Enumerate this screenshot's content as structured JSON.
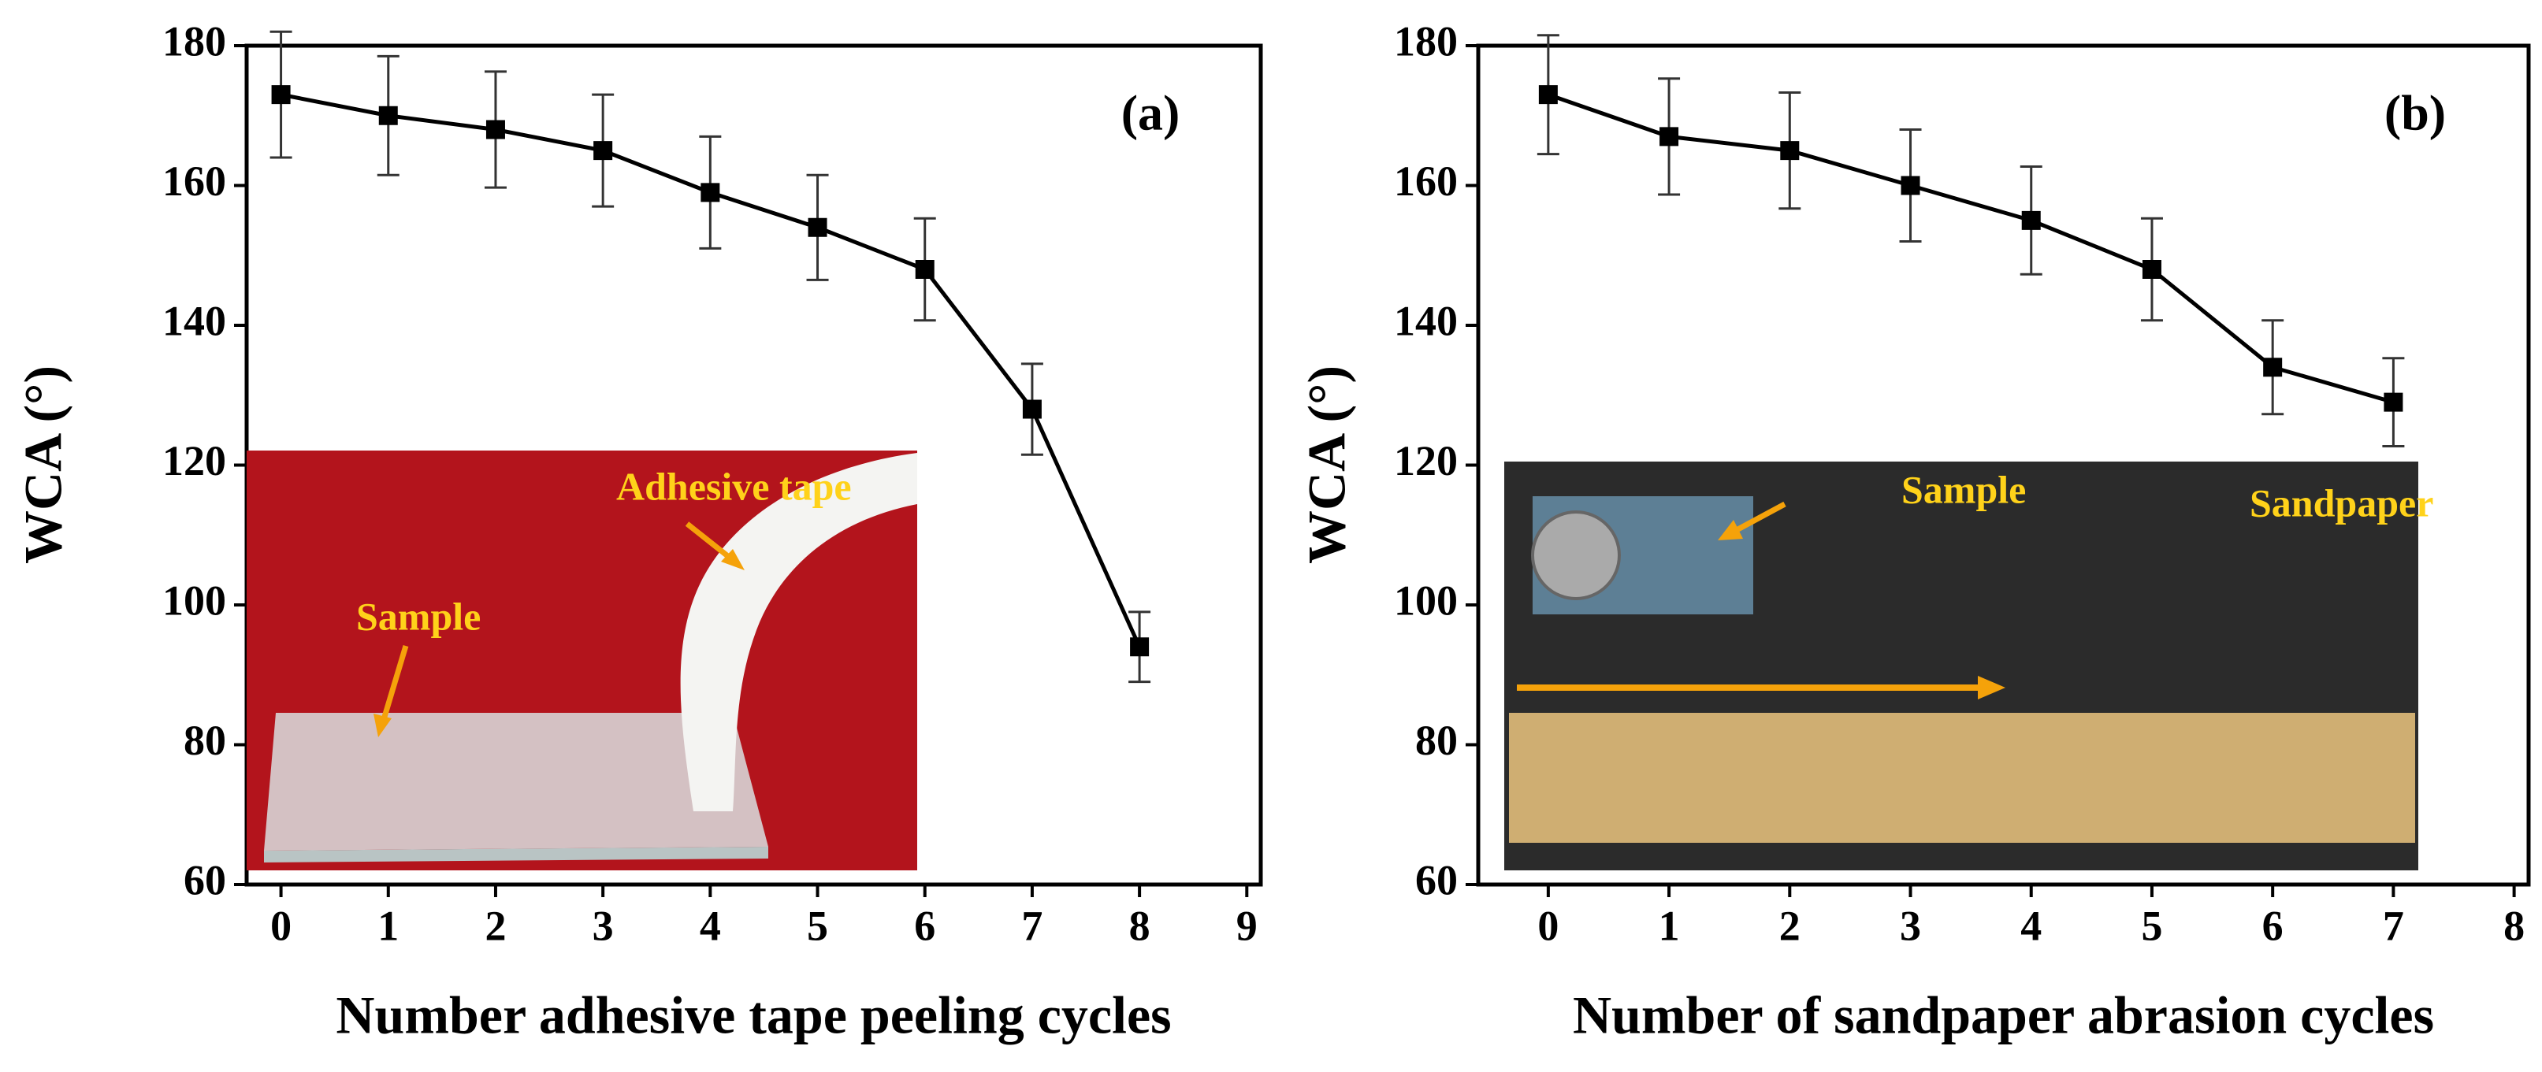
{
  "chart_data": [
    {
      "type": "line",
      "xlabel": "Number adhesive tape peeling cycles",
      "ylabel": "WCA (°)",
      "panel_label": "(a)",
      "xlim": [
        -0.32,
        9.13
      ],
      "ylim": [
        60,
        180
      ],
      "xticks": [
        0,
        1,
        2,
        3,
        4,
        5,
        6,
        7,
        8,
        9
      ],
      "yticks": [
        60,
        80,
        100,
        120,
        140,
        160,
        180
      ],
      "annotations": [
        "Adhesive tape",
        "Sample"
      ],
      "x": [
        0,
        1,
        2,
        3,
        4,
        5,
        6,
        7,
        8
      ],
      "series": [
        {
          "color": "#000000",
          "values": [
            173,
            170,
            168,
            165,
            159,
            154,
            148,
            128,
            94
          ],
          "errors": [
            9,
            8.5,
            8.3,
            8,
            8,
            7.5,
            7.3,
            6.5,
            5
          ]
        }
      ]
    },
    {
      "type": "line",
      "xlabel": "Number of sandpaper abrasion cycles",
      "ylabel": "WCA (°)",
      "panel_label": "(b)",
      "xlim": [
        -0.58,
        8.12
      ],
      "ylim": [
        60,
        180
      ],
      "xticks": [
        0,
        1,
        2,
        3,
        4,
        5,
        6,
        7,
        8
      ],
      "yticks": [
        60,
        80,
        100,
        120,
        140,
        160,
        180
      ],
      "annotations": [
        "Sample",
        "Sandpaper"
      ],
      "x": [
        0,
        1,
        2,
        3,
        4,
        5,
        6,
        7
      ],
      "series": [
        {
          "color": "#000000",
          "values": [
            173,
            167,
            165,
            160,
            155,
            148,
            134,
            129
          ],
          "errors": [
            8.5,
            8.3,
            8.3,
            8,
            7.7,
            7.3,
            6.7,
            6.3
          ]
        }
      ]
    }
  ]
}
